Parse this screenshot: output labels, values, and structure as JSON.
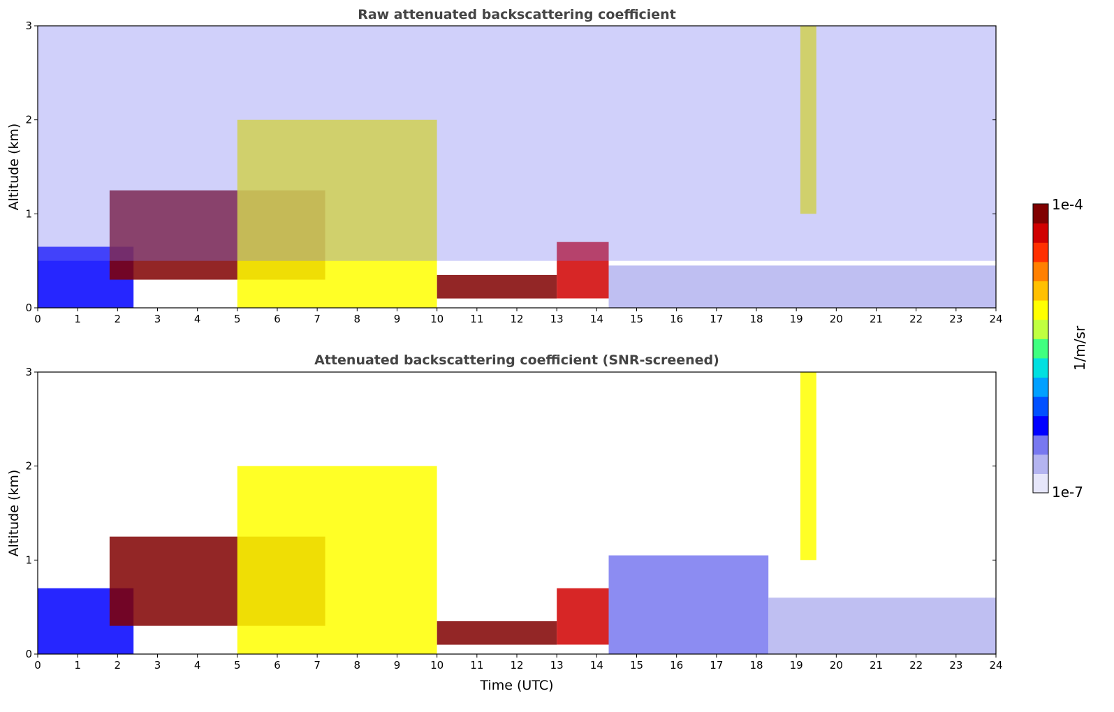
{
  "figure": {
    "colorbar": {
      "max_label": "1e-4",
      "min_label": "1e-7",
      "unit_label": "1/m/sr",
      "vmin": 1e-07,
      "vmax": 0.0001,
      "scale": "log",
      "colormap": [
        "#e6e6fa",
        "#b4b4f0",
        "#7878f0",
        "#0000ff",
        "#0050ff",
        "#00a0ff",
        "#00e0e0",
        "#40ff80",
        "#c0ff40",
        "#ffff00",
        "#ffc000",
        "#ff8000",
        "#ff3000",
        "#d00000",
        "#800000"
      ]
    }
  },
  "chart_data": [
    {
      "type": "heatmap",
      "title": "Raw attenuated backscattering coefficient",
      "xlabel": "",
      "ylabel": "Altitude (km)",
      "xlim": [
        0,
        24
      ],
      "ylim": [
        0,
        3
      ],
      "x_ticks": [
        "0",
        "1",
        "2",
        "3",
        "4",
        "5",
        "6",
        "7",
        "8",
        "9",
        "10",
        "11",
        "12",
        "13",
        "14",
        "15",
        "16",
        "17",
        "18",
        "19",
        "20",
        "21",
        "22",
        "23",
        "24"
      ],
      "y_ticks": [
        "0",
        "1",
        "2",
        "3"
      ],
      "features": [
        {
          "feature": "surface layer",
          "x_range": [
            0,
            2.4
          ],
          "y_range": [
            0,
            0.65
          ],
          "value": 5e-07
        },
        {
          "feature": "boundary layer top (strong)",
          "x_range": [
            1.8,
            7.2
          ],
          "y_range": [
            0.3,
            1.25
          ],
          "value": 0.0001
        },
        {
          "feature": "aerosol layer",
          "x_range": [
            5,
            10
          ],
          "y_range": [
            0,
            2.0
          ],
          "value": 1e-05
        },
        {
          "feature": "low layer",
          "x_range": [
            10,
            13
          ],
          "y_range": [
            0.1,
            0.35
          ],
          "value": 0.0001
        },
        {
          "feature": "broken layer",
          "x_range": [
            13,
            14.3
          ],
          "y_range": [
            0.1,
            0.7
          ],
          "value": 6e-05
        },
        {
          "feature": "clear sky low signal",
          "x_range": [
            14.3,
            24
          ],
          "y_range": [
            0,
            0.45
          ],
          "value": 2e-07
        },
        {
          "feature": "cirrus streak",
          "x_range": [
            19.1,
            19.5
          ],
          "y_range": [
            1.0,
            3.0
          ],
          "value": 1e-05
        },
        {
          "feature": "noise",
          "x_range": [
            0,
            24
          ],
          "y_range": [
            0.5,
            3.0
          ],
          "value": 3e-07
        }
      ]
    },
    {
      "type": "heatmap",
      "title": "Attenuated backscattering coefficient (SNR-screened)",
      "xlabel": "Time (UTC)",
      "ylabel": "Altitude (km)",
      "xlim": [
        0,
        24
      ],
      "ylim": [
        0,
        3
      ],
      "x_ticks": [
        "0",
        "1",
        "2",
        "3",
        "4",
        "5",
        "6",
        "7",
        "8",
        "9",
        "10",
        "11",
        "12",
        "13",
        "14",
        "15",
        "16",
        "17",
        "18",
        "19",
        "20",
        "21",
        "22",
        "23",
        "24"
      ],
      "y_ticks": [
        "0",
        "1",
        "2",
        "3"
      ],
      "features": [
        {
          "feature": "surface layer",
          "x_range": [
            0,
            2.4
          ],
          "y_range": [
            0,
            0.7
          ],
          "value": 5e-07
        },
        {
          "feature": "boundary layer top (saturated)",
          "x_range": [
            1.8,
            7.2
          ],
          "y_range": [
            0.3,
            1.25
          ],
          "value": 0.0001
        },
        {
          "feature": "aerosol layer",
          "x_range": [
            5,
            10
          ],
          "y_range": [
            0,
            2.0
          ],
          "value": 1e-05
        },
        {
          "feature": "low layer",
          "x_range": [
            10,
            13
          ],
          "y_range": [
            0.1,
            0.35
          ],
          "value": 0.0001
        },
        {
          "feature": "broken layer",
          "x_range": [
            13,
            14.3
          ],
          "y_range": [
            0.1,
            0.7
          ],
          "value": 6e-05
        },
        {
          "feature": "residual layer",
          "x_range": [
            14.3,
            18.3
          ],
          "y_range": [
            0,
            1.05
          ],
          "value": 3e-07
        },
        {
          "feature": "weak surface layer",
          "x_range": [
            18.3,
            24
          ],
          "y_range": [
            0,
            0.6
          ],
          "value": 1.5e-07
        },
        {
          "feature": "cirrus streak",
          "x_range": [
            19.1,
            19.5
          ],
          "y_range": [
            1.0,
            3.0
          ],
          "value": 1e-05
        }
      ]
    }
  ]
}
